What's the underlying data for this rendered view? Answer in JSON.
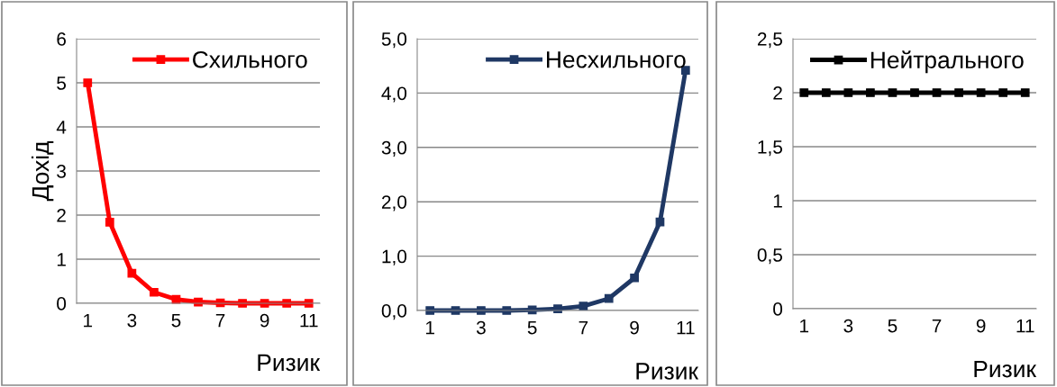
{
  "chart_data": [
    {
      "type": "line",
      "ylabel": "Дохід",
      "xlabel": "Ризик",
      "x": [
        1,
        2,
        3,
        4,
        5,
        6,
        7,
        8,
        9,
        10,
        11
      ],
      "series": [
        {
          "name": "Схильного",
          "color": "#ff0000",
          "values": [
            5,
            1.84,
            0.68,
            0.25,
            0.09,
            0.03,
            0.01,
            0,
            0,
            0,
            0
          ]
        }
      ],
      "xlim": [
        0.5,
        11.5
      ],
      "xticks": [
        1,
        3,
        5,
        7,
        9,
        11
      ],
      "ylim": [
        0,
        6
      ],
      "yticks": [
        0,
        1,
        2,
        3,
        4,
        5,
        6
      ],
      "grid": "y",
      "legend": "top right",
      "marker": "square",
      "line_style": "solid"
    },
    {
      "type": "line",
      "xlabel": "Ризик",
      "x": [
        1,
        2,
        3,
        4,
        5,
        6,
        7,
        8,
        9,
        10,
        11
      ],
      "series": [
        {
          "name": "Несхильного",
          "color": "#1f3864",
          "values": [
            0,
            0,
            0,
            0,
            0.01,
            0.03,
            0.08,
            0.22,
            0.6,
            1.63,
            4.42
          ]
        }
      ],
      "xlim": [
        0.5,
        11.5
      ],
      "xticks": [
        1,
        3,
        5,
        7,
        9,
        11
      ],
      "ylim": [
        0,
        5
      ],
      "yticks": [
        {
          "value": 0,
          "label": "0,0"
        },
        {
          "value": 1,
          "label": "1,0"
        },
        {
          "value": 2,
          "label": "2,0"
        },
        {
          "value": 3,
          "label": "3,0"
        },
        {
          "value": 4,
          "label": "4,0"
        },
        {
          "value": 5,
          "label": "5,0"
        }
      ],
      "grid": "y",
      "legend": "top right",
      "marker": "square",
      "line_style": "solid"
    },
    {
      "type": "line",
      "xlabel": "Ризик",
      "x": [
        1,
        2,
        3,
        4,
        5,
        6,
        7,
        8,
        9,
        10,
        11
      ],
      "series": [
        {
          "name": "Нейтрального",
          "color": "#000000",
          "values": [
            2,
            2,
            2,
            2,
            2,
            2,
            2,
            2,
            2,
            2,
            2
          ]
        }
      ],
      "xlim": [
        0.5,
        11.5
      ],
      "xticks": [
        1,
        3,
        5,
        7,
        9,
        11
      ],
      "ylim": [
        0,
        2.5
      ],
      "yticks": [
        0,
        {
          "value": 0.5,
          "label": "0,5"
        },
        1,
        {
          "value": 1.5,
          "label": "1,5"
        },
        2,
        {
          "value": 2.5,
          "label": "2,5"
        }
      ],
      "grid": "y",
      "legend": "top right",
      "marker": "square",
      "line_style": "solid"
    }
  ]
}
